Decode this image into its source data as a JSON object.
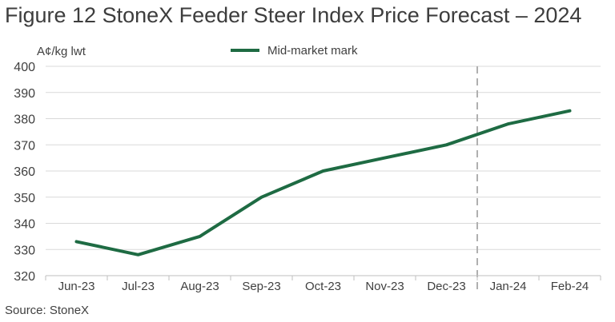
{
  "chart_data": {
    "type": "line",
    "title": "Figure 12 StoneX Feeder Steer Index Price Forecast – 2024",
    "ylabel": "A¢/kg lwt",
    "xlabel": "",
    "categories": [
      "Jun-23",
      "Jul-23",
      "Aug-23",
      "Sep-23",
      "Oct-23",
      "Nov-23",
      "Dec-23",
      "Jan-24",
      "Feb-24"
    ],
    "series": [
      {
        "name": "Mid-market mark",
        "color": "#1e6b43",
        "values": [
          333,
          328,
          335,
          350,
          360,
          365,
          370,
          378,
          383
        ]
      }
    ],
    "ylim": [
      320,
      400
    ],
    "yticks": [
      320,
      330,
      340,
      350,
      360,
      370,
      380,
      390,
      400
    ],
    "grid": true,
    "legend": "top-center",
    "forecast_divider": "between Dec-23 and Jan-24 (dashed vertical line)",
    "colors": {
      "series": "#1e6b43",
      "grid": "#d9d9d9",
      "divider": "#b0b0b0"
    }
  },
  "source": "Source: StoneX"
}
